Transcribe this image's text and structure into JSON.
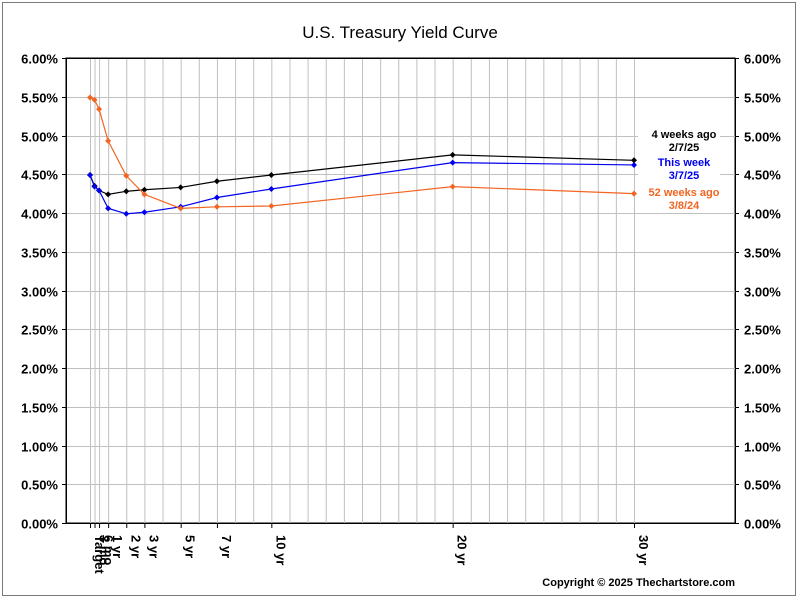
{
  "chart_data": {
    "type": "line",
    "title": "U.S. Treasury Yield Curve",
    "categories": [
      "Target",
      "3 mo",
      "6 mo",
      "1 yr",
      "2 yr",
      "3 yr",
      "5 yr",
      "7 yr",
      "10 yr",
      "20 yr",
      "30 yr"
    ],
    "x_years": [
      0,
      0.25,
      0.5,
      1,
      2,
      3,
      5,
      7,
      10,
      20,
      30
    ],
    "y_ticks": [
      "0.00%",
      "0.50%",
      "1.00%",
      "1.50%",
      "2.00%",
      "2.50%",
      "3.00%",
      "3.50%",
      "4.00%",
      "4.50%",
      "5.00%",
      "5.50%",
      "6.00%"
    ],
    "ylim": [
      0,
      6
    ],
    "grid": true,
    "legend_position": "right",
    "series": [
      {
        "legend_lines": [
          "4 weeks ago",
          "2/7/25"
        ],
        "color": "#000000",
        "values": [
          4.49,
          4.35,
          4.29,
          4.24,
          4.28,
          4.3,
          4.33,
          4.41,
          4.49,
          4.75,
          4.68
        ]
      },
      {
        "legend_lines": [
          "This week",
          "3/7/25"
        ],
        "color": "#0000ee",
        "values": [
          4.49,
          4.34,
          4.29,
          4.06,
          3.99,
          4.01,
          4.08,
          4.2,
          4.31,
          4.65,
          4.62
        ]
      },
      {
        "legend_lines": [
          "52 weeks ago",
          "3/8/24"
        ],
        "color": "#f26522",
        "values": [
          5.49,
          5.46,
          5.34,
          4.93,
          4.48,
          4.24,
          4.06,
          4.08,
          4.09,
          4.34,
          4.25
        ]
      }
    ]
  },
  "footer": {
    "copyright": "Copyright © 2025 Thechartstore.com"
  }
}
